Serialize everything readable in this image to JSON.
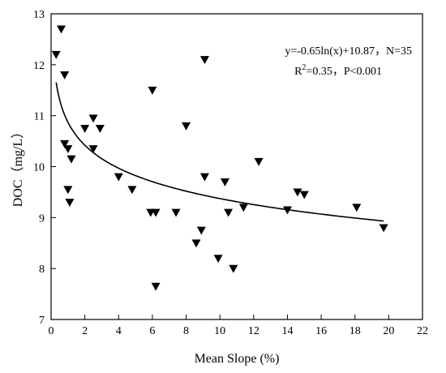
{
  "chart_data": {
    "type": "scatter",
    "xlabel": "Mean Slope (%)",
    "ylabel": "DOC（mg/L）",
    "xlim": [
      0,
      22
    ],
    "ylim": [
      7,
      13
    ],
    "xticks": [
      0,
      2,
      4,
      6,
      8,
      10,
      12,
      14,
      16,
      18,
      20,
      22
    ],
    "yticks": [
      7,
      8,
      9,
      10,
      11,
      12,
      13
    ],
    "marker": "inverted-triangle",
    "grid": false,
    "annotations": {
      "equation": "y=-0.65ln(x)+10.87，N=35",
      "r2_prefix": "R",
      "r2_sup": "2",
      "r2_rest": "=0.35，P<0.001"
    },
    "fit": {
      "type": "log",
      "a": -0.65,
      "b": 10.87,
      "x_range": [
        0.3,
        19.7
      ]
    },
    "points": [
      {
        "x": 0.3,
        "y": 12.2
      },
      {
        "x": 0.6,
        "y": 12.7
      },
      {
        "x": 0.8,
        "y": 11.8
      },
      {
        "x": 0.8,
        "y": 10.45
      },
      {
        "x": 1.0,
        "y": 10.35
      },
      {
        "x": 1.2,
        "y": 10.15
      },
      {
        "x": 1.0,
        "y": 9.55
      },
      {
        "x": 1.1,
        "y": 9.3
      },
      {
        "x": 2.0,
        "y": 10.75
      },
      {
        "x": 2.5,
        "y": 10.95
      },
      {
        "x": 2.5,
        "y": 10.35
      },
      {
        "x": 2.9,
        "y": 10.75
      },
      {
        "x": 4.0,
        "y": 9.8
      },
      {
        "x": 4.8,
        "y": 9.55
      },
      {
        "x": 6.0,
        "y": 11.5
      },
      {
        "x": 5.9,
        "y": 9.1
      },
      {
        "x": 6.2,
        "y": 9.1
      },
      {
        "x": 6.2,
        "y": 7.65
      },
      {
        "x": 7.4,
        "y": 9.1
      },
      {
        "x": 8.0,
        "y": 10.8
      },
      {
        "x": 8.6,
        "y": 8.5
      },
      {
        "x": 8.9,
        "y": 8.75
      },
      {
        "x": 9.1,
        "y": 12.1
      },
      {
        "x": 9.1,
        "y": 9.8
      },
      {
        "x": 9.9,
        "y": 8.2
      },
      {
        "x": 10.3,
        "y": 9.7
      },
      {
        "x": 10.5,
        "y": 9.1
      },
      {
        "x": 10.8,
        "y": 8.0
      },
      {
        "x": 11.4,
        "y": 9.2
      },
      {
        "x": 12.3,
        "y": 10.1
      },
      {
        "x": 14.0,
        "y": 9.15
      },
      {
        "x": 14.6,
        "y": 9.5
      },
      {
        "x": 15.0,
        "y": 9.45
      },
      {
        "x": 18.1,
        "y": 9.2
      },
      {
        "x": 19.7,
        "y": 8.8
      }
    ]
  }
}
